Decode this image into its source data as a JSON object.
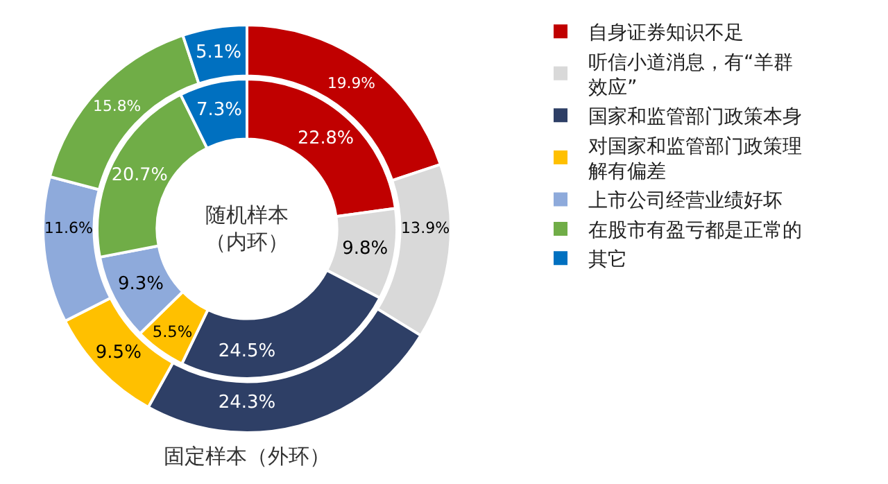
{
  "chart_data": {
    "type": "donut",
    "categories": [
      "自身证券知识不足",
      "听信小道消息，有“羊群效应”",
      "国家和监管部门政策本身",
      "对国家和监管部门政策理解有偏差",
      "上市公司经营业绩好坏",
      "在股市有盈亏都是正常的",
      "其它"
    ],
    "colors": [
      "#c00000",
      "#d9d9d9",
      "#2e3f66",
      "#ffc000",
      "#8eaadb",
      "#70ad47",
      "#0070c0"
    ],
    "series": [
      {
        "name": "固定样本（外环）",
        "values": [
          19.9,
          13.9,
          24.3,
          9.5,
          11.6,
          15.8,
          5.1
        ],
        "value_labels": [
          "19.9%",
          "13.9%",
          "24.3%",
          "9.5%",
          "11.6%",
          "15.8%",
          "5.1%"
        ]
      },
      {
        "name": "随机样本（内环）",
        "values": [
          22.8,
          9.8,
          24.5,
          5.5,
          9.3,
          20.7,
          7.3
        ],
        "value_labels": [
          "22.8%",
          "9.8%",
          "24.5%",
          "5.5%",
          "9.3%",
          "20.7%",
          "7.3%"
        ]
      }
    ],
    "legend": "right"
  }
}
